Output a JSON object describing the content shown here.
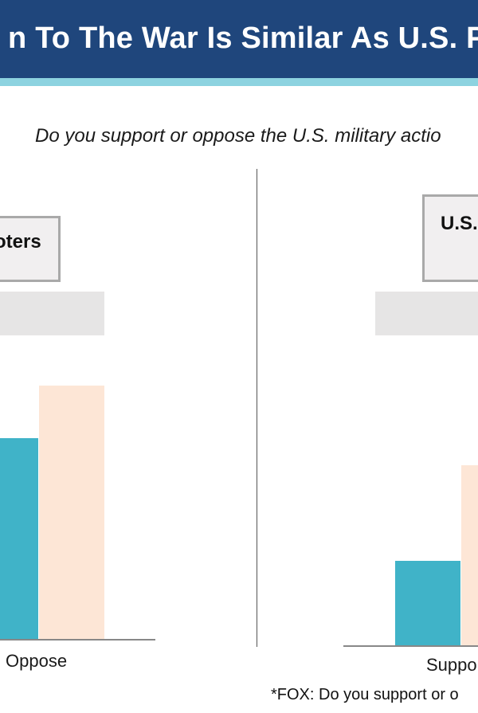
{
  "title": "To The War Is Similar As U.S. P",
  "title_prefix": "n",
  "question": "Do you support or oppose the U.S. military actio",
  "footnote": "*FOX: Do you support or o",
  "colors": {
    "banner": "#1f467c",
    "stripe": "#8dd3e0",
    "series_primary": "#40b3c8",
    "series_secondary": "#fde6d6",
    "label_box_fill": "#f1eff0",
    "label_box_border": "#a9a9a9",
    "band": "#e6e5e5"
  },
  "chart_data": [
    {
      "type": "bar",
      "panel_label": "oters",
      "categories": [
        "Oppose"
      ],
      "series": [
        {
          "values": [
            53
          ]
        },
        {
          "values": [
            67
          ]
        }
      ],
      "ylim": [
        0,
        100
      ]
    },
    {
      "type": "bar",
      "panel_label": "U.S.",
      "categories": [
        "Suppo"
      ],
      "series": [
        {
          "values": [
            30
          ]
        },
        {
          "values": [
            64
          ]
        }
      ],
      "ylim": [
        0,
        100
      ]
    }
  ]
}
